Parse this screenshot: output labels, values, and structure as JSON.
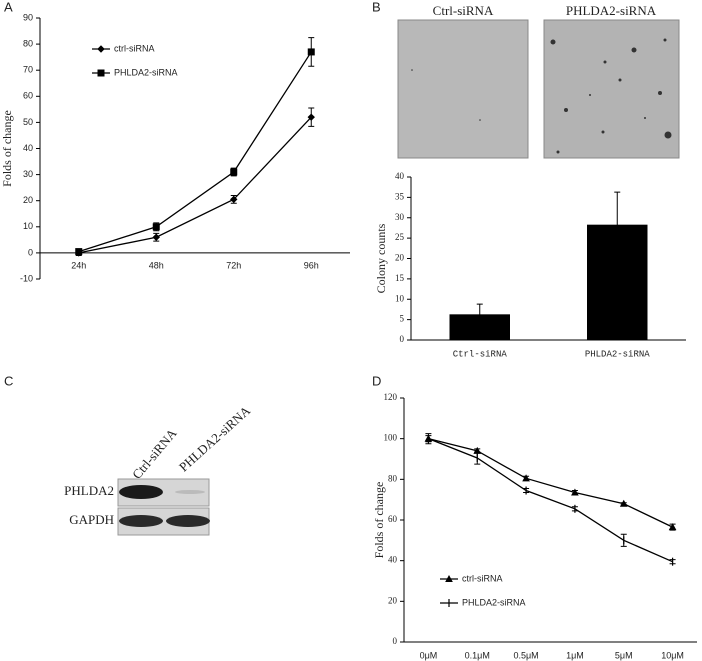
{
  "panel_labels": [
    "A",
    "B",
    "C",
    "D"
  ],
  "images": {
    "labels": [
      "Ctrl-siRNA",
      "PHLDA2-siRNA"
    ]
  },
  "blot": {
    "columns": [
      "Ctrl-siRNA",
      "PHLDA2-siRNA"
    ],
    "rows": [
      "PHLDA2",
      "GAPDH"
    ]
  },
  "chart_data": [
    {
      "type": "line",
      "y_label": "Folds of change",
      "categories": [
        "24h",
        "48h",
        "72h",
        "96h"
      ],
      "series": [
        {
          "name": "ctrl-siRNA",
          "color": "#000000",
          "marker": "diamond",
          "values": [
            0,
            6,
            20.5,
            52
          ],
          "errors": [
            1,
            1.5,
            1.5,
            3.5
          ]
        },
        {
          "name": "PHLDA2-siRNA",
          "color": "#000000",
          "marker": "square",
          "values": [
            0.5,
            10,
            31,
            77
          ],
          "errors": [
            1,
            1.5,
            1.5,
            5.5
          ]
        }
      ],
      "ylim": [
        -10,
        90
      ],
      "yticks": [
        -10,
        0,
        10,
        20,
        30,
        40,
        50,
        60,
        70,
        80,
        90
      ],
      "legend": "upper left"
    },
    {
      "type": "bar",
      "y_label": "Colony counts",
      "categories": [
        "Ctrl-siRNA",
        "PHLDA2-siRNA"
      ],
      "series": [
        {
          "color": "#000000",
          "values": [
            6.3,
            28.3
          ],
          "errors": [
            2.5,
            8
          ]
        }
      ],
      "ylim": [
        0,
        40
      ],
      "yticks": [
        0,
        5,
        10,
        15,
        20,
        25,
        30,
        35,
        40
      ]
    },
    {
      "type": "line",
      "y_label": "Folds of change",
      "categories": [
        "0μM",
        "0.1μM",
        "0.5μM",
        "1μM",
        "5μM",
        "10μM"
      ],
      "series": [
        {
          "name": "ctrl-siRNA",
          "color": "#000000",
          "marker": "triangle",
          "values": [
            100,
            94,
            80.5,
            73.5,
            68,
            56.5
          ],
          "errors": [
            1.5,
            1,
            1,
            1,
            0.5,
            1.5
          ]
        },
        {
          "name": "PHLDA2-siRNA",
          "color": "#000000",
          "marker": "plus",
          "values": [
            100,
            90.5,
            74.5,
            65.5,
            50,
            39.5
          ],
          "errors": [
            2.5,
            3,
            1,
            1,
            3,
            1
          ]
        }
      ],
      "ylim": [
        0,
        120
      ],
      "yticks": [
        0,
        20,
        40,
        60,
        80,
        100,
        120
      ],
      "legend": "lower left"
    }
  ]
}
